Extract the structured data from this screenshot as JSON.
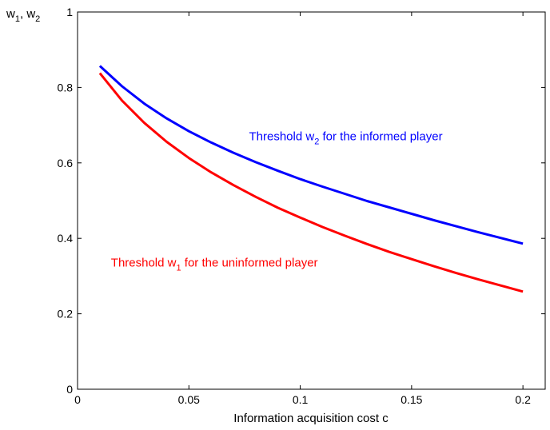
{
  "chart_data": {
    "type": "line",
    "title": "",
    "xlabel": "Information acquisition cost c",
    "ylabel": {
      "main": "w",
      "sub1": "1",
      "sep": ", ",
      "main2": "w",
      "sub2": "2"
    },
    "xlim": [
      0,
      0.21
    ],
    "ylim": [
      0,
      1
    ],
    "x_ticks": [
      0,
      0.05,
      0.1,
      0.15,
      0.2
    ],
    "x_tick_labels": [
      "0",
      "0.05",
      "0.1",
      "0.15",
      "0.2"
    ],
    "y_ticks": [
      0,
      0.2,
      0.4,
      0.6,
      0.8,
      1
    ],
    "y_tick_labels": [
      "0",
      "0.2",
      "0.4",
      "0.6",
      "0.8",
      "1"
    ],
    "grid": false,
    "legend": "none",
    "series": [
      {
        "id": "w2",
        "color": "#0000ff",
        "x": [
          0.01,
          0.02,
          0.03,
          0.04,
          0.05,
          0.06,
          0.07,
          0.08,
          0.09,
          0.1,
          0.11,
          0.12,
          0.13,
          0.14,
          0.15,
          0.16,
          0.17,
          0.18,
          0.19,
          0.2
        ],
        "y": [
          0.857,
          0.803,
          0.757,
          0.718,
          0.684,
          0.654,
          0.627,
          0.602,
          0.579,
          0.557,
          0.537,
          0.518,
          0.499,
          0.482,
          0.465,
          0.448,
          0.432,
          0.416,
          0.401,
          0.386
        ]
      },
      {
        "id": "w1",
        "color": "#ff0000",
        "x": [
          0.01,
          0.02,
          0.03,
          0.04,
          0.05,
          0.06,
          0.07,
          0.08,
          0.09,
          0.1,
          0.11,
          0.12,
          0.13,
          0.14,
          0.15,
          0.16,
          0.17,
          0.18,
          0.19,
          0.2
        ],
        "y": [
          0.838,
          0.765,
          0.706,
          0.656,
          0.613,
          0.575,
          0.541,
          0.51,
          0.481,
          0.455,
          0.43,
          0.407,
          0.385,
          0.364,
          0.345,
          0.326,
          0.308,
          0.291,
          0.275,
          0.259
        ]
      }
    ],
    "annotations": [
      {
        "id": "w2",
        "color": "#0000ff",
        "pre": "Threshold w",
        "sub": "2",
        "post": " for the informed player",
        "x": 0.077,
        "y": 0.66
      },
      {
        "id": "w1",
        "color": "#ff0000",
        "pre": "Threshold w",
        "sub": "1",
        "post": " for the uninformed player",
        "x": 0.015,
        "y": 0.325
      }
    ]
  }
}
